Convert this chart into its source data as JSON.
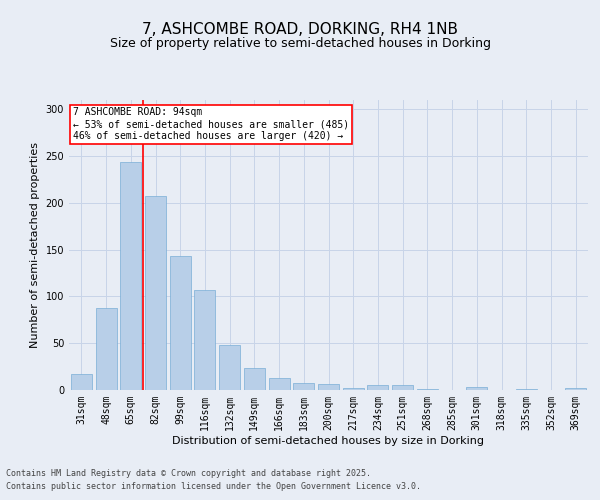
{
  "title": "7, ASHCOMBE ROAD, DORKING, RH4 1NB",
  "subtitle": "Size of property relative to semi-detached houses in Dorking",
  "xlabel": "Distribution of semi-detached houses by size in Dorking",
  "ylabel": "Number of semi-detached properties",
  "categories": [
    "31sqm",
    "48sqm",
    "65sqm",
    "82sqm",
    "99sqm",
    "116sqm",
    "132sqm",
    "149sqm",
    "166sqm",
    "183sqm",
    "200sqm",
    "217sqm",
    "234sqm",
    "251sqm",
    "268sqm",
    "285sqm",
    "301sqm",
    "318sqm",
    "335sqm",
    "352sqm",
    "369sqm"
  ],
  "values": [
    17,
    88,
    244,
    207,
    143,
    107,
    48,
    23,
    13,
    8,
    6,
    2,
    5,
    5,
    1,
    0,
    3,
    0,
    1,
    0,
    2
  ],
  "bar_color": "#b8cfe8",
  "bar_edge_color": "#7aaed6",
  "property_line_index": 3,
  "annotation_text_line1": "7 ASHCOMBE ROAD: 94sqm",
  "annotation_text_line2": "← 53% of semi-detached houses are smaller (485)",
  "annotation_text_line3": "46% of semi-detached houses are larger (420) →",
  "ylim": [
    0,
    310
  ],
  "yticks": [
    0,
    50,
    100,
    150,
    200,
    250,
    300
  ],
  "grid_color": "#c8d4e8",
  "bg_color": "#e8edf5",
  "footer_line1": "Contains HM Land Registry data © Crown copyright and database right 2025.",
  "footer_line2": "Contains public sector information licensed under the Open Government Licence v3.0.",
  "title_fontsize": 11,
  "subtitle_fontsize": 9,
  "axis_label_fontsize": 8,
  "tick_fontsize": 7,
  "annotation_fontsize": 7,
  "footer_fontsize": 6
}
